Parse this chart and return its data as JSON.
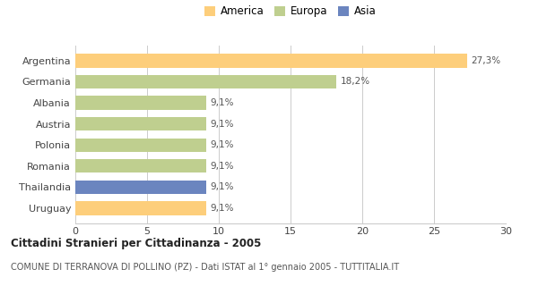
{
  "categories": [
    "Argentina",
    "Germania",
    "Albania",
    "Austria",
    "Polonia",
    "Romania",
    "Thailandia",
    "Uruguay"
  ],
  "values": [
    27.3,
    18.2,
    9.1,
    9.1,
    9.1,
    9.1,
    9.1,
    9.1
  ],
  "labels": [
    "27,3%",
    "18,2%",
    "9,1%",
    "9,1%",
    "9,1%",
    "9,1%",
    "9,1%",
    "9,1%"
  ],
  "colors": [
    "#FDCE7B",
    "#BFCF8F",
    "#BFCF8F",
    "#BFCF8F",
    "#BFCF8F",
    "#BFCF8F",
    "#6B85BF",
    "#FDCE7B"
  ],
  "legend_labels": [
    "America",
    "Europa",
    "Asia"
  ],
  "legend_colors": [
    "#FDCE7B",
    "#BFCF8F",
    "#6B85BF"
  ],
  "title": "Cittadini Stranieri per Cittadinanza - 2005",
  "subtitle": "COMUNE DI TERRANOVA DI POLLINO (PZ) - Dati ISTAT al 1° gennaio 2005 - TUTTITALIA.IT",
  "xlim": [
    0,
    30
  ],
  "xticks": [
    0,
    5,
    10,
    15,
    20,
    25,
    30
  ],
  "background_color": "#ffffff",
  "grid_color": "#cccccc"
}
